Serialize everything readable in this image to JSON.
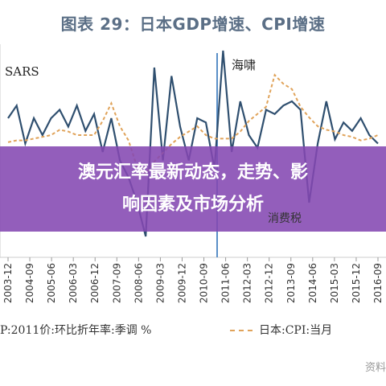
{
  "title": "图表 29：日本GDP增速、CPI增速",
  "overlay": {
    "line1": "澳元汇率最新动态，走势、影",
    "line2": "响因素及市场分析"
  },
  "annotations": {
    "sars": "SARS",
    "tsunami": "海啸",
    "tax": "消费税"
  },
  "footer": {
    "left": "P:2011价:环比折年率:季调 %",
    "right": "日本:CPI:当月"
  },
  "watermark": "资料",
  "colors": {
    "gdp": "#2f4f6f",
    "cpi": "#e0a35a",
    "marker": "#5a8fc7",
    "overlay": "#8448b2"
  },
  "chart_data": {
    "type": "line",
    "title": "图表 29：日本GDP增速、CPI增速",
    "x_ticks": [
      "2003-12",
      "2004-09",
      "2005-06",
      "2006-03",
      "2006-12",
      "2007-09",
      "2008-06",
      "2009-03",
      "2009-12",
      "2010-09",
      "2011-06",
      "2012-03",
      "2012-12",
      "2013-09",
      "2014-06",
      "2015-03",
      "2015-12",
      "2016-09"
    ],
    "vertical_marker": "2011-03",
    "series": [
      {
        "name": "P:2011价:环比折年率:季调",
        "style": "solid",
        "values": [
          2.0,
          3.5,
          -1.0,
          2.0,
          0.0,
          2.0,
          3.0,
          1.0,
          3.5,
          0.5,
          2.5,
          -2.0,
          2.0,
          -3.0,
          -5.0,
          -8.0,
          -12.0,
          8.0,
          -3.0,
          7.0,
          1.0,
          -3.0,
          2.0,
          1.5,
          -4.0,
          10.0,
          -2.0,
          4.0,
          0.0,
          -1.5,
          3.0,
          2.5,
          3.5,
          4.0,
          3.0,
          -8.0,
          -1.0,
          4.0,
          -0.5,
          1.5,
          0.5,
          2.0,
          0.0,
          -1.0
        ]
      },
      {
        "name": "日本:CPI:当月",
        "style": "dashed",
        "values": [
          -0.4,
          -0.3,
          -0.3,
          -0.2,
          -0.1,
          0.0,
          0.3,
          0.2,
          0.0,
          0.0,
          0.0,
          0.8,
          1.8,
          0.5,
          -0.3,
          -1.8,
          -2.2,
          -1.5,
          -1.0,
          -0.5,
          -0.1,
          0.2,
          0.5,
          0.0,
          -0.2,
          -0.2,
          -0.2,
          0.2,
          0.8,
          1.2,
          1.6,
          3.4,
          2.9,
          2.6,
          1.6,
          1.0,
          0.5,
          0.3,
          0.2,
          0.0,
          -0.1,
          -0.3,
          -0.2,
          0.0
        ]
      }
    ]
  }
}
